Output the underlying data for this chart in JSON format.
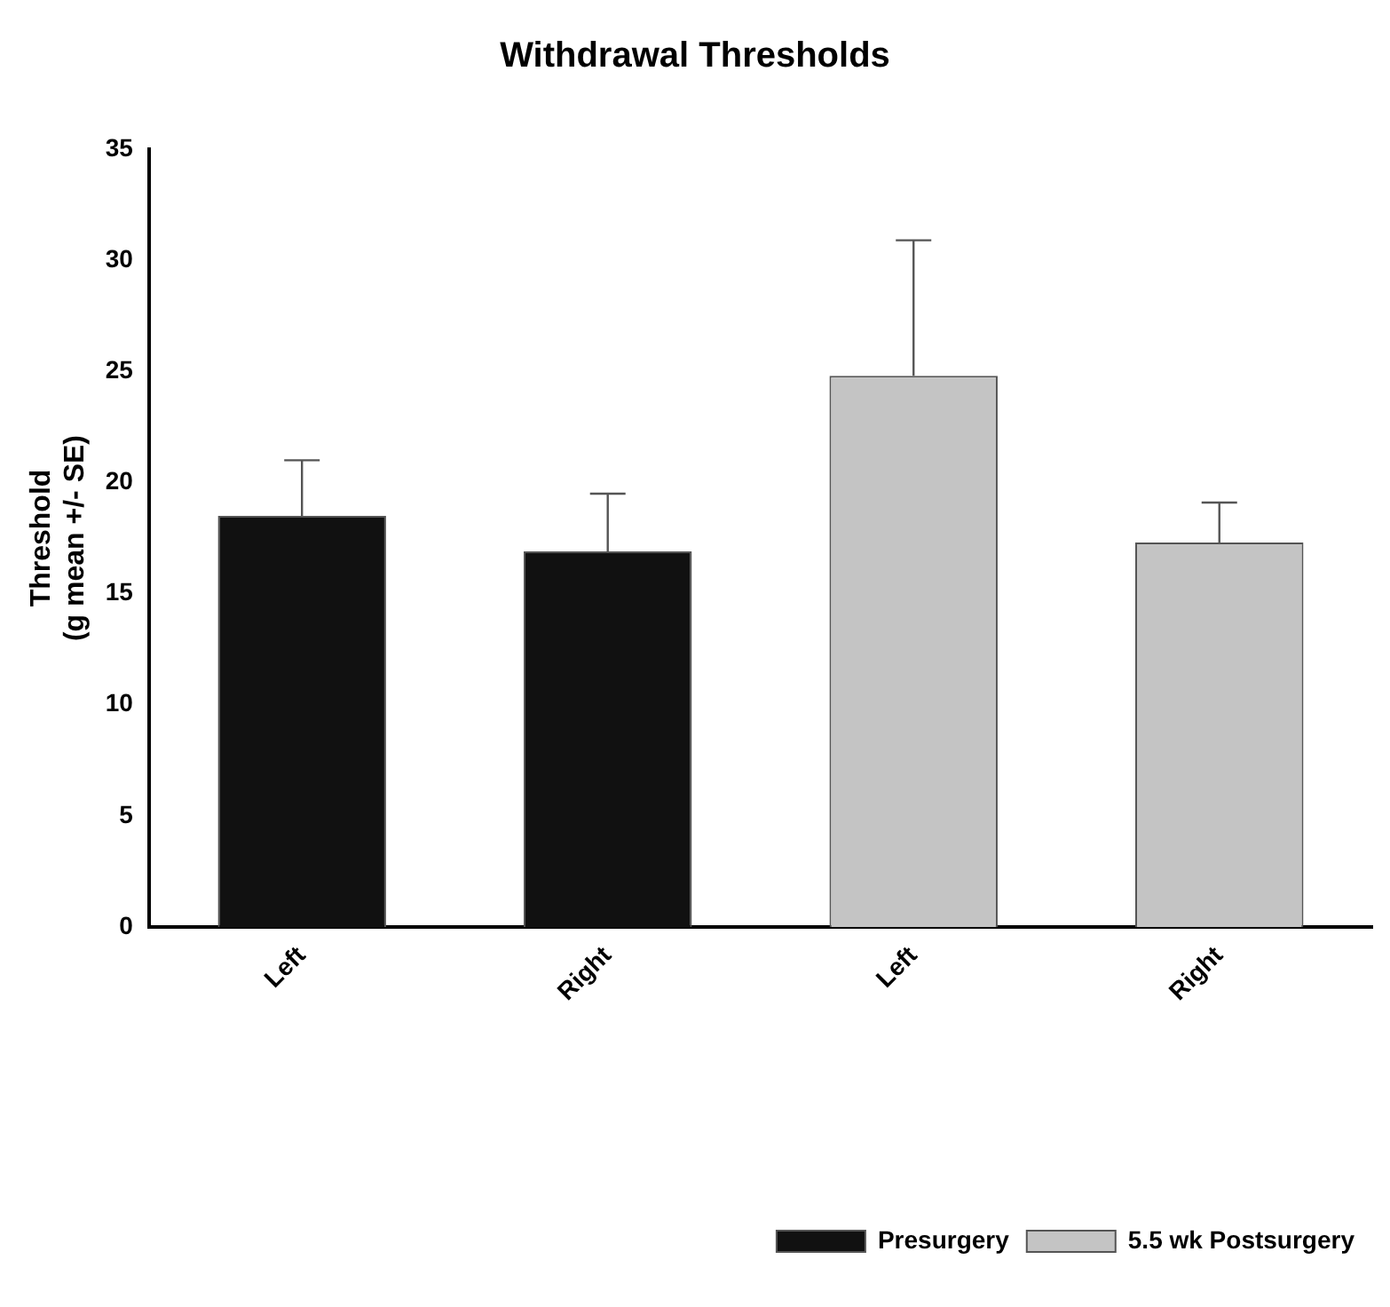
{
  "chart_data": {
    "type": "bar",
    "title": "Withdrawal Thresholds",
    "ylabel": "Threshold\n(g mean +/- SE)",
    "categories": [
      "Left",
      "Right",
      "Left",
      "Right"
    ],
    "series": [
      {
        "name": "Presurgery",
        "color": "#111111",
        "values": [
          18.5,
          16.9,
          null,
          null
        ],
        "errors": [
          [
            18.5,
            21.0
          ],
          [
            16.9,
            19.5
          ],
          null,
          null
        ]
      },
      {
        "name": "5.5 wk Postsurgery",
        "color": "#c4c4c4",
        "values": [
          null,
          null,
          24.8,
          17.3
        ],
        "errors": [
          null,
          null,
          [
            24.8,
            30.9
          ],
          [
            17.3,
            19.1
          ]
        ]
      }
    ],
    "ylim": [
      0,
      35
    ],
    "yticks": [
      0,
      5,
      10,
      15,
      20,
      25,
      30,
      35
    ],
    "grid": false,
    "legend": "bottom right"
  }
}
